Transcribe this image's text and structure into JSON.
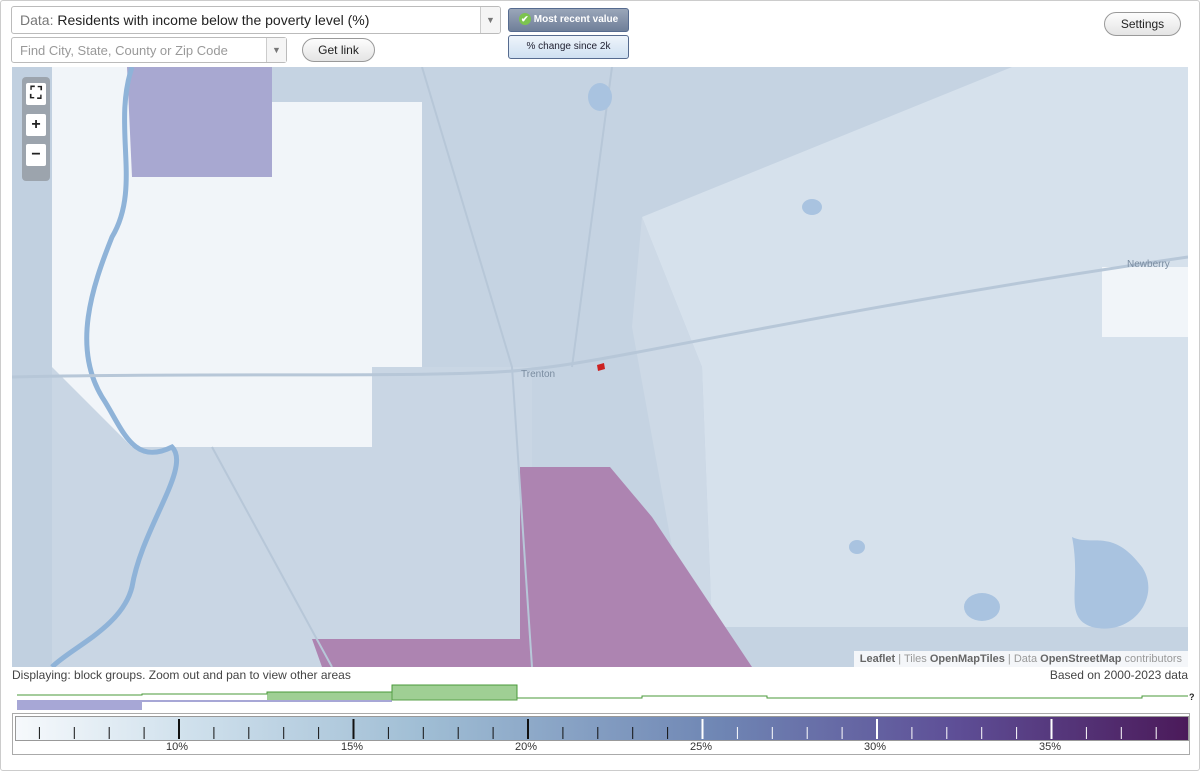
{
  "data_select": {
    "prefix": "Data:",
    "value": "Residents with income below the poverty level (%)"
  },
  "search": {
    "placeholder": "Find City, State, County or Zip Code"
  },
  "buttons": {
    "get_link": "Get link",
    "settings": "Settings"
  },
  "toggles": {
    "most_recent": "Most recent value",
    "change_since": "% change since 2k"
  },
  "map": {
    "places": [
      "Trenton",
      "Newberry"
    ],
    "attribution": {
      "leaflet": "Leaflet",
      "tiles_prefix": "Tiles",
      "tiles": "OpenMapTiles",
      "data_prefix": "Data",
      "data": "OpenStreetMap",
      "suffix": "contributors"
    }
  },
  "footer": {
    "displaying": "Displaying: block groups. Zoom out and pan to view other areas",
    "based_on": "Based on 2000-2023 data"
  },
  "legend": {
    "labels": [
      "10%",
      "15%",
      "20%",
      "25%",
      "30%",
      "35%"
    ]
  },
  "colors": {
    "accent": "#566b8f",
    "histogram_current": "#7cc074",
    "histogram_2000": "#a7a7d6",
    "highlight": "#cc2222"
  }
}
